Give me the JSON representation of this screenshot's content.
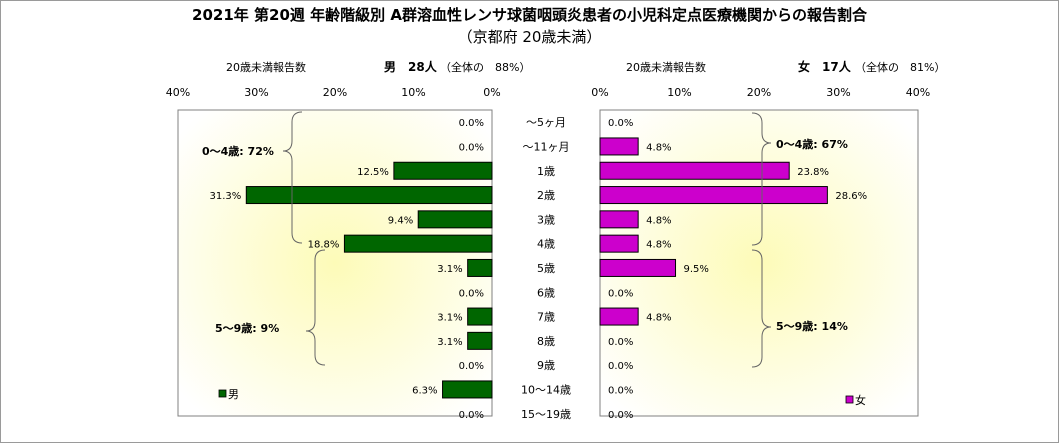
{
  "title": "2021年 第20週 年齢階級別 A群溶血性レンサ球菌咽頭炎患者の小児科定点医療機関からの報告割合",
  "subtitle": "（京都府 20歳未満）",
  "male": {
    "reports_label": "20歳未満報告数",
    "count_label": "男　28人",
    "share_label": "（全体の　88%）",
    "group_0_4_label": "0～4歳: 72%",
    "group_5_9_label": "5～9歳: 9%",
    "legend": "男",
    "color": "#006600"
  },
  "female": {
    "reports_label": "20歳未満報告数",
    "count_label": "女　17人",
    "share_label": "（全体の　81%）",
    "group_0_4_label": "0～4歳: 67%",
    "group_5_9_label": "5～9歳: 14%",
    "legend": "女",
    "color": "#cc00cc"
  },
  "chart_data": {
    "type": "bar",
    "orientation": "horizontal",
    "layout": "population-pyramid",
    "categories": [
      "～5ヶ月",
      "～11ヶ月",
      "1歳",
      "2歳",
      "3歳",
      "4歳",
      "5歳",
      "6歳",
      "7歳",
      "8歳",
      "9歳",
      "10～14歳",
      "15～19歳"
    ],
    "xlim": [
      0,
      40
    ],
    "x_ticks": [
      "0%",
      "10%",
      "20%",
      "30%",
      "40%"
    ],
    "series": [
      {
        "name": "男",
        "values": [
          0.0,
          0.0,
          12.5,
          31.3,
          9.4,
          18.8,
          3.1,
          0.0,
          3.1,
          3.1,
          0.0,
          6.3,
          0.0
        ],
        "labels": [
          "0.0%",
          "0.0%",
          "12.5%",
          "31.3%",
          "9.4%",
          "18.8%",
          "3.1%",
          "0.0%",
          "3.1%",
          "3.1%",
          "0.0%",
          "6.3%",
          "0.0%"
        ]
      },
      {
        "name": "女",
        "values": [
          0.0,
          4.8,
          23.8,
          28.6,
          4.8,
          4.8,
          9.5,
          0.0,
          4.8,
          0.0,
          0.0,
          0.0,
          0.0
        ],
        "labels": [
          "0.0%",
          "4.8%",
          "23.8%",
          "28.6%",
          "4.8%",
          "4.8%",
          "9.5%",
          "0.0%",
          "4.8%",
          "0.0%",
          "0.0%",
          "0.0%",
          "0.0%"
        ]
      }
    ],
    "grid": false,
    "legend_position": "bottom-left / bottom-right"
  }
}
